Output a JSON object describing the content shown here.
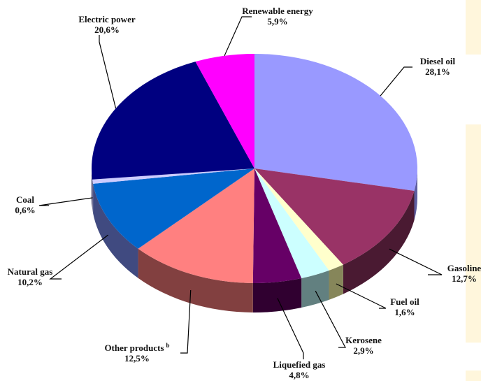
{
  "chart_data": {
    "type": "pie",
    "title": "",
    "three_d": true,
    "slices": [
      {
        "name": "Diesel oil",
        "value": 28.1,
        "value_label": "28,1%",
        "color": "#9999ff",
        "side": "#5e5ea0"
      },
      {
        "name": "Gasoline",
        "value": 12.7,
        "value_label": "12,7%",
        "color": "#993366",
        "side": "#4a1a32"
      },
      {
        "name": "Fuel oil",
        "value": 1.6,
        "value_label": "1,6%",
        "color": "#ffffcc",
        "side": "#86865a"
      },
      {
        "name": "Kerosene",
        "value": 2.9,
        "value_label": "2,9%",
        "color": "#ccffff",
        "side": "#628080"
      },
      {
        "name": "Liquefied gas",
        "value": 4.8,
        "value_label": "4,8%",
        "color": "#660066",
        "side": "#300030"
      },
      {
        "name": "Other products",
        "name_sup": "b",
        "value": 12.5,
        "value_label": "12,5%",
        "color": "#ff8080",
        "side": "#824040"
      },
      {
        "name": "Natural gas",
        "value": 10.2,
        "value_label": "10,2%",
        "color": "#0066cc",
        "side": "#404a80"
      },
      {
        "name": "Coal",
        "value": 0.6,
        "value_label": "0,6%",
        "color": "#ccccff",
        "side": "#8080a0"
      },
      {
        "name": "Electric power",
        "value": 20.6,
        "value_label": "20,6%",
        "color": "#000080",
        "side": "#000040"
      },
      {
        "name": "Renewable energy",
        "value": 5.9,
        "value_label": "5,9%",
        "color": "#ff00ff",
        "side": "#800080"
      }
    ]
  },
  "colors": {
    "background": "#ffffff",
    "side_strip": "#fff6dc"
  }
}
